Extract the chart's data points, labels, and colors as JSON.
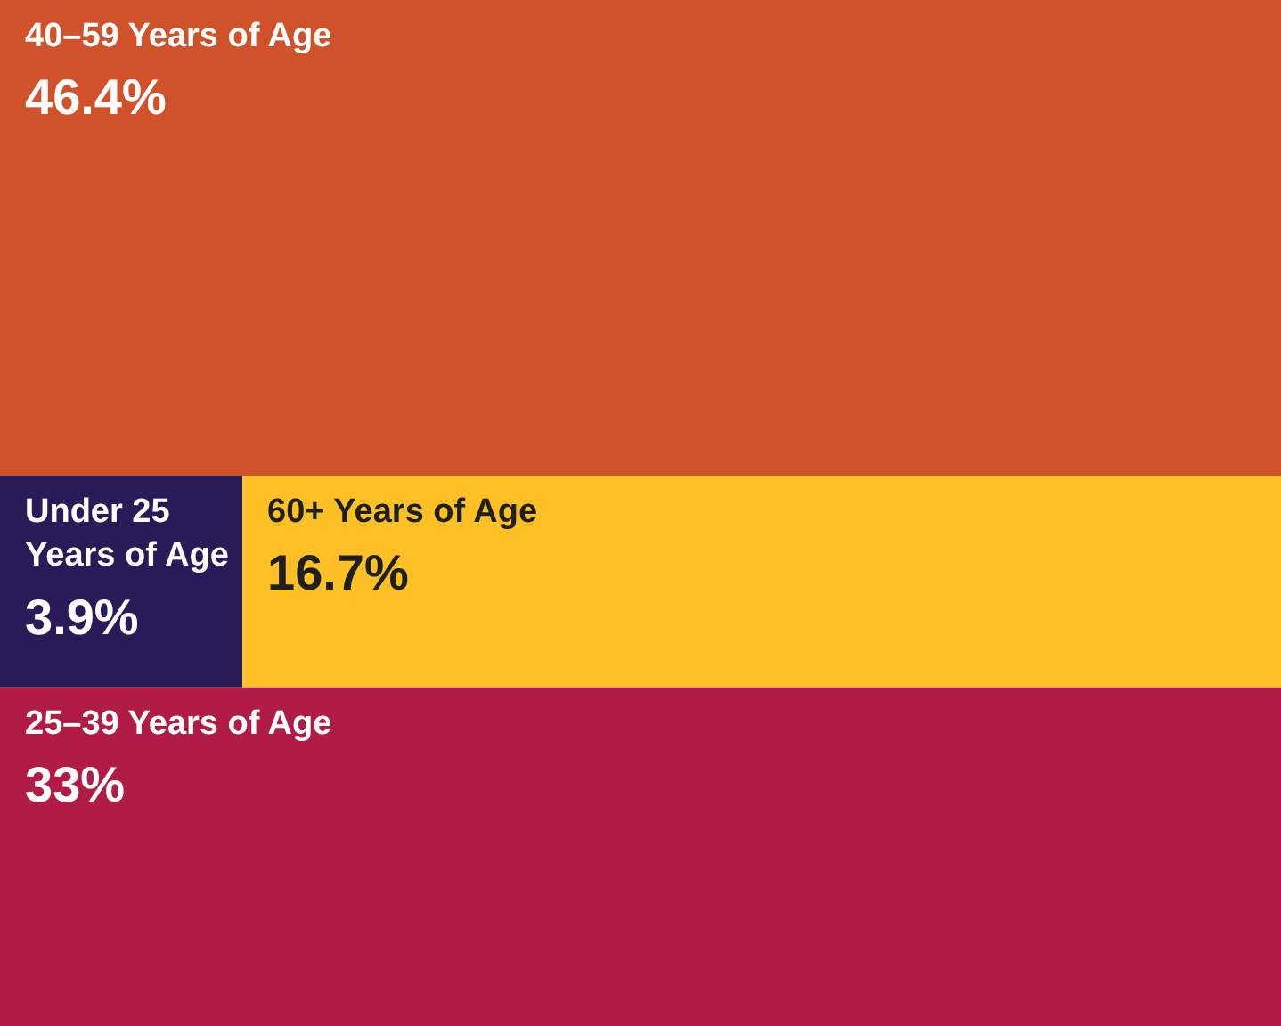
{
  "chart_data": {
    "type": "other",
    "categories": [
      "40–59 Years of Age",
      "Under 25 Years of Age",
      "60+ Years of Age",
      "25–39 Years of Age"
    ],
    "values": [
      46.4,
      3.9,
      16.7,
      33
    ],
    "value_labels": [
      "46.4%",
      "3.9%",
      "16.7%",
      "33%"
    ],
    "colors": [
      "#d0522a",
      "#2a1a57",
      "#fdc125",
      "#b01c45"
    ]
  }
}
